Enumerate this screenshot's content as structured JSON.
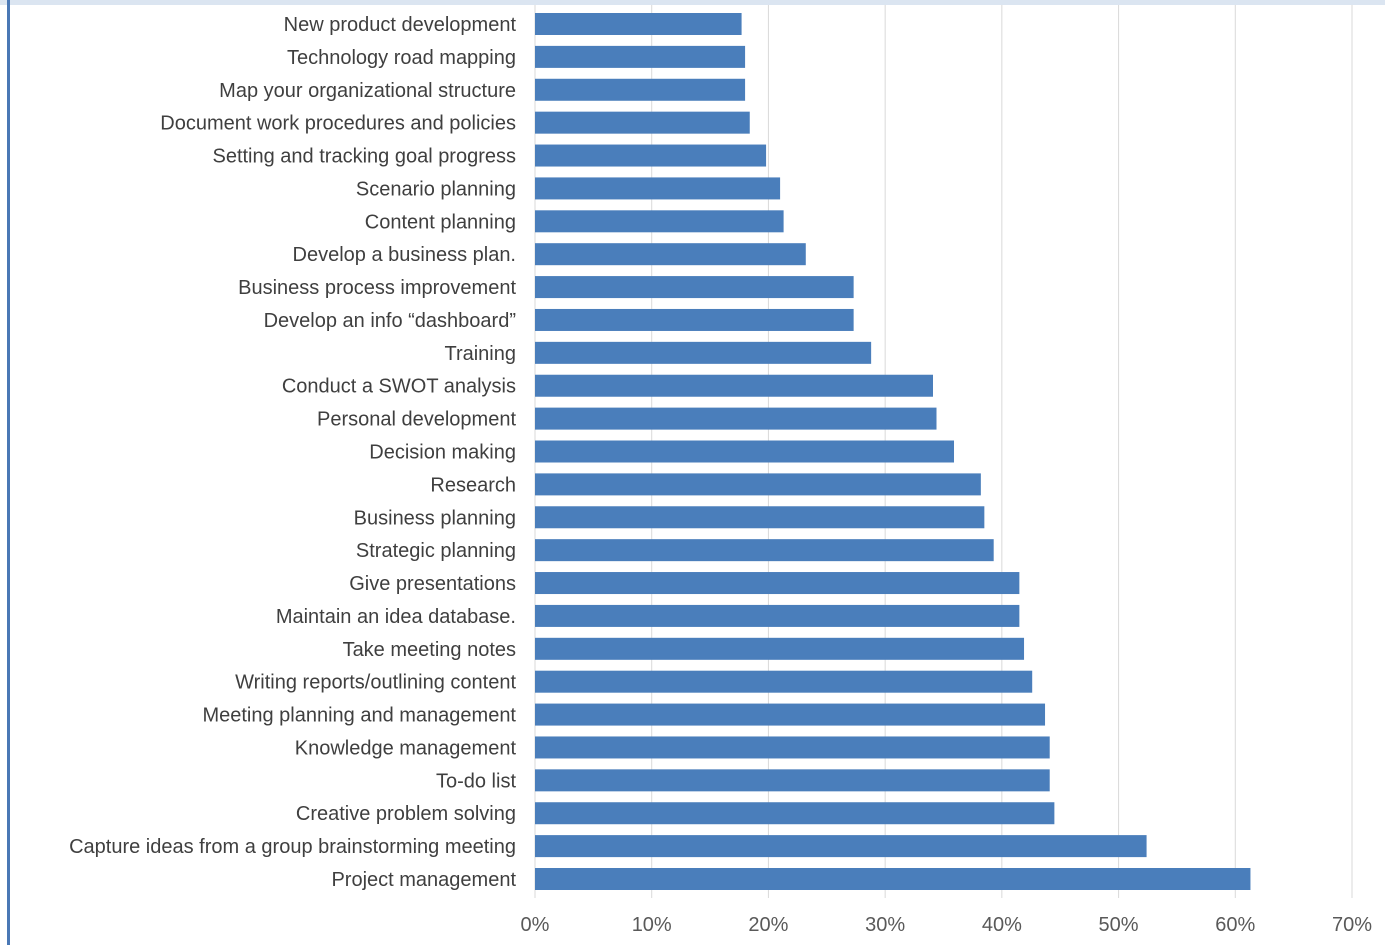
{
  "chart_data": {
    "type": "bar",
    "orientation": "horizontal",
    "title": "",
    "xlabel": "",
    "ylabel": "",
    "xlim": [
      0,
      70
    ],
    "unit": "%",
    "tick_labels": [
      "0%",
      "10%",
      "20%",
      "30%",
      "40%",
      "50%",
      "60%",
      "70%"
    ],
    "tick_values": [
      0,
      10,
      20,
      30,
      40,
      50,
      60,
      70
    ],
    "grid": "vertical",
    "legend": "none",
    "bar_color": "#4a7ebb",
    "categories": [
      "New product development",
      "Technology road mapping",
      "Map your organizational structure",
      "Document work procedures and policies",
      "Setting and tracking goal progress",
      "Scenario planning",
      "Content planning",
      "Develop a business plan.",
      "Business process improvement",
      "Develop an info “dashboard”",
      "Training",
      "Conduct a SWOT analysis",
      "Personal development",
      "Decision making",
      "Research",
      "Business planning",
      "Strategic planning",
      "Give presentations",
      "Maintain an idea database.",
      "Take meeting notes",
      "Writing reports/outlining content",
      "Meeting planning and management",
      "Knowledge management",
      "To-do list",
      "Creative problem solving",
      "Capture ideas from a group brainstorming meeting",
      "Project management"
    ],
    "values": [
      17.7,
      18.0,
      18.0,
      18.4,
      19.8,
      21.0,
      21.3,
      23.2,
      27.3,
      27.3,
      28.8,
      34.1,
      34.4,
      35.9,
      38.2,
      38.5,
      39.3,
      41.5,
      41.5,
      41.9,
      42.6,
      43.7,
      44.1,
      44.1,
      44.5,
      52.4,
      61.3
    ]
  }
}
